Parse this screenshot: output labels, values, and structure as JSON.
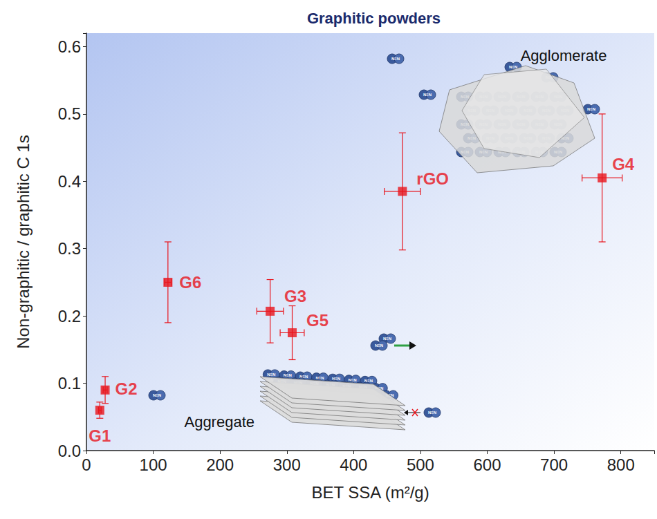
{
  "chart_data": {
    "type": "scatter",
    "title": "Graphitic powders",
    "x_label": "BET SSA (m²/g)",
    "y_label": "Non-graphitic / graphitic C 1s",
    "labels": [
      "G1",
      "G2",
      "G6",
      "G3",
      "G5",
      "rGO",
      "G4"
    ],
    "x": [
      20,
      28,
      122,
      275,
      308,
      473,
      772
    ],
    "values": [
      0.06,
      0.09,
      0.25,
      0.207,
      0.175,
      0.385,
      0.405
    ],
    "x_error": [
      2,
      3,
      5,
      20,
      18,
      27,
      30
    ],
    "y_error": [
      0.012,
      0.02,
      0.06,
      0.047,
      0.04,
      0.087,
      0.095
    ],
    "color": "#e8141c",
    "marker": "square",
    "xlim": [
      0,
      850
    ],
    "xticks": [
      0,
      100,
      200,
      300,
      400,
      500,
      600,
      700,
      800
    ],
    "ylim": [
      0,
      0.62
    ],
    "yticks": [
      {
        "value": 0,
        "label": "0.0"
      },
      0.1,
      0.2,
      0.3,
      0.4,
      0.5,
      0.6
    ],
    "grid": false,
    "annotations": {
      "agglomerate": "Agglomerate",
      "aggregate": "Aggregate",
      "molecule": "N≡N"
    }
  }
}
